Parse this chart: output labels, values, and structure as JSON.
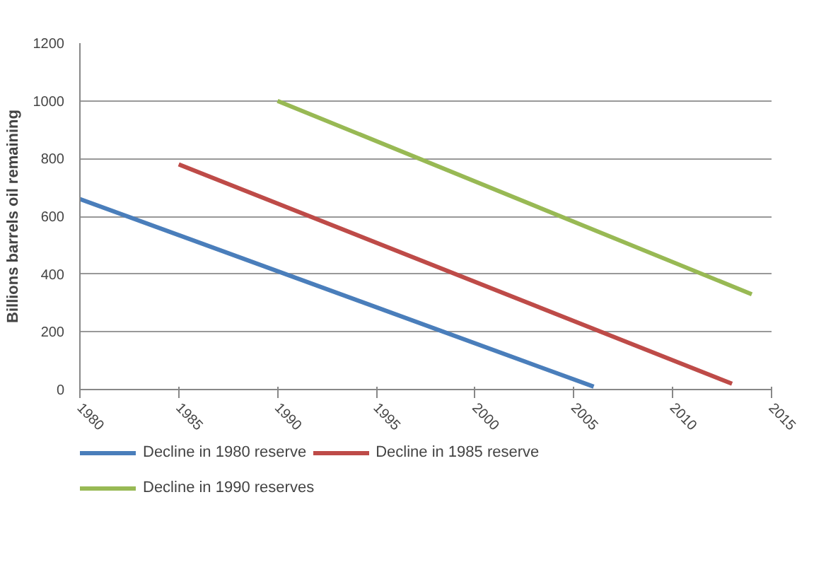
{
  "chart_data": {
    "type": "line",
    "ylabel": "Billions barrels oil remaining",
    "xlim": [
      1980,
      2015
    ],
    "xticks": [
      1980,
      1985,
      1990,
      1995,
      2000,
      2005,
      2010,
      2015
    ],
    "ylim": [
      0,
      1200
    ],
    "yticks": [
      0,
      200,
      400,
      600,
      800,
      1000,
      1200
    ],
    "grid": "y",
    "legend": "bottom",
    "marker": "none",
    "line_style": "solid",
    "series": [
      {
        "name": "Decline in 1980 reserve",
        "color": "#4a7ebb",
        "x": [
          1980,
          2006
        ],
        "values": [
          660,
          10
        ]
      },
      {
        "name": "Decline in 1985 reserve",
        "color": "#be4b48",
        "x": [
          1985,
          2013
        ],
        "values": [
          780,
          20
        ]
      },
      {
        "name": "Decline in 1990 reserves",
        "color": "#98b954",
        "x": [
          1990,
          2014
        ],
        "values": [
          1000,
          330
        ]
      }
    ]
  }
}
